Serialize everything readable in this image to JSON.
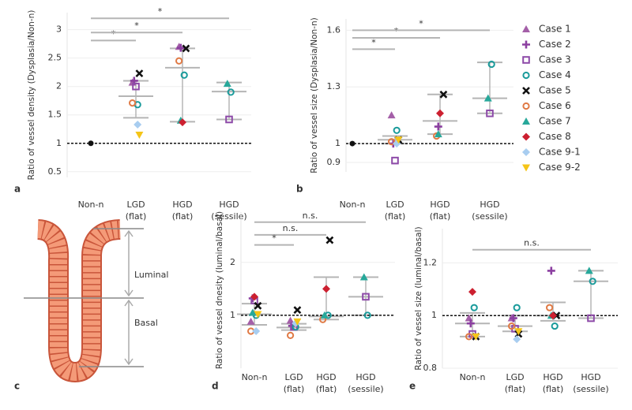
{
  "chart_data": [
    {
      "type": "dot",
      "panel": "a",
      "y_label": "Ratio of vessel density (Dysplasia/Non-n)",
      "categories": [
        "Non-n",
        "LGD",
        "HGD",
        "HGD"
      ],
      "category_sublabels": [
        null,
        "(flat)",
        "(flat)",
        "(sessile)"
      ],
      "ylim": [
        0.4,
        3.3
      ],
      "yticks": [
        0.5,
        1,
        1.5,
        2,
        2.5,
        3
      ],
      "grid": true,
      "reference_line": 1,
      "reference_point": 1,
      "series": [
        {
          "name": "Case 1",
          "color": "#a45fa8",
          "marker": "triangle",
          "values": [
            null,
            2.07,
            2.7,
            null
          ]
        },
        {
          "name": "Case 2",
          "color": "#8b3fa0",
          "marker": "plus",
          "values": [
            null,
            2.1,
            2.68,
            null
          ]
        },
        {
          "name": "Case 3",
          "color": "#8d4aa8",
          "marker": "square",
          "values": [
            null,
            2.0,
            null,
            1.42
          ]
        },
        {
          "name": "Case 4",
          "color": "#1a9b9b",
          "marker": "circle",
          "values": [
            null,
            1.68,
            2.2,
            1.9
          ]
        },
        {
          "name": "Case 5",
          "color": "#111111",
          "marker": "x",
          "values": [
            null,
            2.23,
            2.67,
            null
          ]
        },
        {
          "name": "Case 6",
          "color": "#e07a45",
          "marker": "circle",
          "values": [
            null,
            1.71,
            2.45,
            null
          ]
        },
        {
          "name": "Case 7",
          "color": "#27a89a",
          "marker": "triangle",
          "values": [
            null,
            null,
            1.4,
            2.05
          ]
        },
        {
          "name": "Case 8",
          "color": "#cc2030",
          "marker": "diamond",
          "values": [
            null,
            null,
            1.37,
            null
          ]
        },
        {
          "name": "Case 9-1",
          "color": "#a8cdf0",
          "marker": "diamond",
          "values": [
            null,
            1.33,
            null,
            null
          ]
        },
        {
          "name": "Case 9-2",
          "color": "#f5c518",
          "marker": "triangle-down",
          "values": [
            null,
            1.15,
            null,
            null
          ]
        }
      ],
      "summary": {
        "upper": [
          null,
          2.1,
          2.67,
          2.07
        ],
        "mean": [
          null,
          1.83,
          2.33,
          1.91
        ],
        "lower": [
          null,
          1.45,
          1.38,
          1.42
        ]
      },
      "brackets": [
        {
          "from": 0,
          "to": 1,
          "y": 2.81,
          "label": "*"
        },
        {
          "from": 0,
          "to": 2,
          "y": 2.95,
          "label": "*"
        },
        {
          "from": 0,
          "to": 3,
          "y": 3.2,
          "label": "*"
        }
      ]
    },
    {
      "type": "dot",
      "panel": "b",
      "y_label": "Ratio of vessel size (Dysplasia/Non-n)",
      "categories": [
        "Non-n",
        "LGD",
        "HGD",
        "HGD"
      ],
      "category_sublabels": [
        null,
        "(flat)",
        "(flat)",
        "(sessile)"
      ],
      "ylim": [
        0.85,
        1.66
      ],
      "yticks": [
        0.9,
        1,
        1.3,
        1.6
      ],
      "grid": true,
      "reference_line": 1,
      "reference_point": 1,
      "series": [
        {
          "name": "Case 1",
          "color": "#a45fa8",
          "marker": "triangle",
          "values": [
            null,
            1.15,
            null,
            null
          ]
        },
        {
          "name": "Case 2",
          "color": "#8b3fa0",
          "marker": "plus",
          "values": [
            null,
            1.0,
            1.09,
            null
          ]
        },
        {
          "name": "Case 3",
          "color": "#8d4aa8",
          "marker": "square",
          "values": [
            null,
            0.91,
            null,
            1.16
          ]
        },
        {
          "name": "Case 4",
          "color": "#1a9b9b",
          "marker": "circle",
          "values": [
            null,
            1.07,
            null,
            1.42
          ]
        },
        {
          "name": "Case 5",
          "color": "#111111",
          "marker": "x",
          "values": [
            null,
            1.02,
            1.26,
            null
          ]
        },
        {
          "name": "Case 6",
          "color": "#e07a45",
          "marker": "circle",
          "values": [
            null,
            1.01,
            1.04,
            null
          ]
        },
        {
          "name": "Case 7",
          "color": "#27a89a",
          "marker": "triangle",
          "values": [
            null,
            null,
            1.05,
            1.24
          ]
        },
        {
          "name": "Case 8",
          "color": "#cc2030",
          "marker": "diamond",
          "values": [
            null,
            null,
            1.16,
            null
          ]
        },
        {
          "name": "Case 9-1",
          "color": "#a8cdf0",
          "marker": "diamond",
          "values": [
            null,
            1.0,
            null,
            null
          ]
        },
        {
          "name": "Case 9-2",
          "color": "#f5c518",
          "marker": "triangle-down",
          "values": [
            null,
            1.02,
            null,
            null
          ]
        }
      ],
      "summary": {
        "upper": [
          null,
          1.04,
          1.26,
          1.43
        ],
        "mean": [
          null,
          1.02,
          1.12,
          1.24
        ],
        "lower": [
          null,
          1.0,
          1.05,
          1.16
        ]
      },
      "brackets": [
        {
          "from": 0,
          "to": 1,
          "y": 1.5,
          "label": "*"
        },
        {
          "from": 0,
          "to": 2,
          "y": 1.56,
          "label": "*"
        },
        {
          "from": 0,
          "to": 3,
          "y": 1.6,
          "label": "*"
        }
      ]
    },
    {
      "type": "dot",
      "panel": "d",
      "y_label": "Ratio of vessel dnesity (luminal/basal)",
      "categories": [
        "Non-n",
        "LGD",
        "HGD",
        "HGD"
      ],
      "category_sublabels": [
        null,
        "(flat)",
        "(flat)",
        "(sessile)"
      ],
      "ylim": [
        0,
        2.95
      ],
      "yticks": [
        1,
        2
      ],
      "grid": true,
      "reference_line": 1,
      "series": [
        {
          "name": "Case 1",
          "color": "#a45fa8",
          "marker": "triangle",
          "values": [
            0.88,
            0.9,
            null,
            null
          ]
        },
        {
          "name": "Case 2",
          "color": "#8b3fa0",
          "marker": "plus",
          "values": [
            1.32,
            0.8,
            null,
            null
          ]
        },
        {
          "name": "Case 3",
          "color": "#8d4aa8",
          "marker": "square",
          "values": [
            1.28,
            0.78,
            null,
            1.35
          ]
        },
        {
          "name": "Case 4",
          "color": "#1a9b9b",
          "marker": "circle",
          "values": [
            1.0,
            0.78,
            1.0,
            1.0
          ]
        },
        {
          "name": "Case 5",
          "color": "#111111",
          "marker": "x",
          "values": [
            1.18,
            1.1,
            2.42,
            null
          ]
        },
        {
          "name": "Case 6",
          "color": "#e07a45",
          "marker": "circle",
          "values": [
            0.7,
            0.62,
            0.92,
            null
          ]
        },
        {
          "name": "Case 7",
          "color": "#27a89a",
          "marker": "triangle",
          "values": [
            1.05,
            null,
            1.0,
            1.72
          ]
        },
        {
          "name": "Case 8",
          "color": "#cc2030",
          "marker": "diamond",
          "values": [
            1.35,
            null,
            1.5,
            null
          ]
        },
        {
          "name": "Case 9-1",
          "color": "#a8cdf0",
          "marker": "diamond",
          "values": [
            0.7,
            0.85,
            null,
            null
          ]
        },
        {
          "name": "Case 9-2",
          "color": "#f5c518",
          "marker": "triangle-down",
          "values": [
            1.02,
            0.88,
            null,
            null
          ]
        }
      ],
      "summary": {
        "upper": [
          1.22,
          0.84,
          1.72,
          1.72
        ],
        "mean": [
          1.02,
          0.77,
          0.98,
          1.35
        ],
        "lower": [
          0.82,
          0.72,
          0.92,
          1.0
        ]
      },
      "brackets": [
        {
          "from": 0,
          "to": 3,
          "y": 2.76,
          "label": "n.s."
        },
        {
          "from": 0,
          "to": 2,
          "y": 2.52,
          "label": "n.s."
        },
        {
          "from": 0,
          "to": 1,
          "y": 2.33,
          "label": "*"
        }
      ]
    },
    {
      "type": "dot",
      "panel": "e",
      "y_label": "Ratio of vessel size (luminal/basal)",
      "categories": [
        "Non-n",
        "LGD",
        "HGD",
        "HGD"
      ],
      "category_sublabels": [
        null,
        "(flat)",
        "(flat)",
        "(sessile)"
      ],
      "ylim": [
        0.8,
        1.33
      ],
      "yticks": [
        0.8,
        1,
        1.2
      ],
      "grid": true,
      "reference_line": 1,
      "series": [
        {
          "name": "Case 1",
          "color": "#a45fa8",
          "marker": "triangle",
          "values": [
            0.99,
            0.99,
            null,
            null
          ]
        },
        {
          "name": "Case 2",
          "color": "#8b3fa0",
          "marker": "plus",
          "values": [
            0.97,
            0.99,
            1.17,
            null
          ]
        },
        {
          "name": "Case 3",
          "color": "#8d4aa8",
          "marker": "square",
          "values": [
            0.93,
            0.95,
            null,
            0.99
          ]
        },
        {
          "name": "Case 4",
          "color": "#1a9b9b",
          "marker": "circle",
          "values": [
            1.03,
            1.03,
            0.96,
            1.13
          ]
        },
        {
          "name": "Case 5",
          "color": "#111111",
          "marker": "x",
          "values": [
            0.92,
            0.93,
            1.0,
            null
          ]
        },
        {
          "name": "Case 6",
          "color": "#e07a45",
          "marker": "circle",
          "values": [
            0.92,
            0.96,
            1.03,
            null
          ]
        },
        {
          "name": "Case 7",
          "color": "#27a89a",
          "marker": "triangle",
          "values": [
            null,
            null,
            1.0,
            1.17
          ]
        },
        {
          "name": "Case 8",
          "color": "#cc2030",
          "marker": "diamond",
          "values": [
            1.09,
            null,
            1.0,
            null
          ]
        },
        {
          "name": "Case 9-1",
          "color": "#a8cdf0",
          "marker": "diamond",
          "values": [
            null,
            0.91,
            null,
            null
          ]
        },
        {
          "name": "Case 9-2",
          "color": "#f5c518",
          "marker": "triangle-down",
          "values": [
            0.92,
            0.94,
            null,
            null
          ]
        }
      ],
      "summary": {
        "upper": [
          1.01,
          1.0,
          1.05,
          1.17
        ],
        "mean": [
          0.97,
          0.96,
          1.0,
          1.13
        ],
        "lower": [
          0.92,
          0.94,
          0.98,
          0.99
        ]
      },
      "brackets": [
        {
          "from": 0,
          "to": 3,
          "y": 1.25,
          "label": "n.s."
        }
      ]
    }
  ],
  "diagram": {
    "panel": "c",
    "upper_label": "Luminal",
    "lower_label": "Basal"
  }
}
